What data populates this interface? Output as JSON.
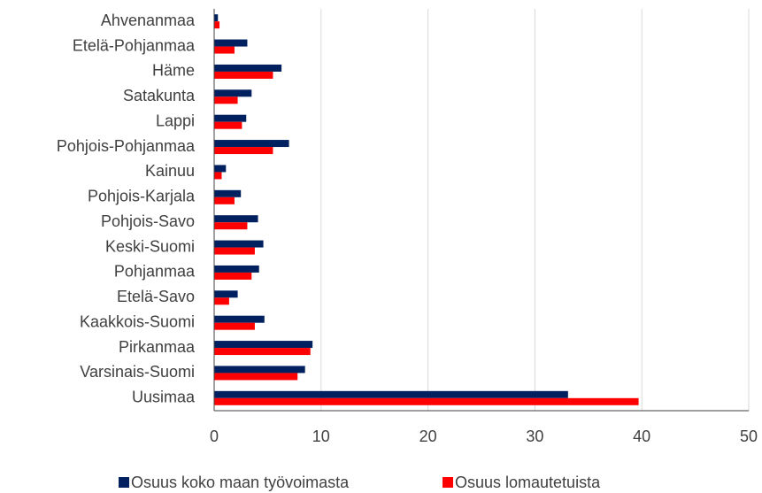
{
  "chart_data": {
    "type": "hbar",
    "categories": [
      "Ahvenanmaa",
      "Etelä-Pohjanmaa",
      "Häme",
      "Satakunta",
      "Lappi",
      "Pohjois-Pohjanmaa",
      "Kainuu",
      "Pohjois-Karjala",
      "Pohjois-Savo",
      "Keski-Suomi",
      "Pohjanmaa",
      "Etelä-Savo",
      "Kaakkois-Suomi",
      "Pirkanmaa",
      "Varsinais-Suomi",
      "Uusimaa"
    ],
    "series": [
      {
        "name": "Osuus koko maan työvoimasta",
        "color": "#002060",
        "values": [
          0.35,
          3.1,
          6.3,
          3.5,
          3.0,
          7.0,
          1.1,
          2.5,
          4.1,
          4.6,
          4.2,
          2.2,
          4.7,
          9.2,
          8.5,
          33.1
        ]
      },
      {
        "name": "Osuus lomautetuista",
        "color": "#ff0000",
        "values": [
          0.5,
          1.9,
          5.5,
          2.2,
          2.6,
          5.5,
          0.7,
          1.9,
          3.1,
          3.8,
          3.5,
          1.4,
          3.8,
          9.0,
          7.8,
          39.7
        ]
      }
    ],
    "xlim": [
      0,
      50
    ],
    "xticks": [
      0,
      10,
      20,
      30,
      40,
      50
    ],
    "grid": true,
    "legend": "bottom"
  }
}
